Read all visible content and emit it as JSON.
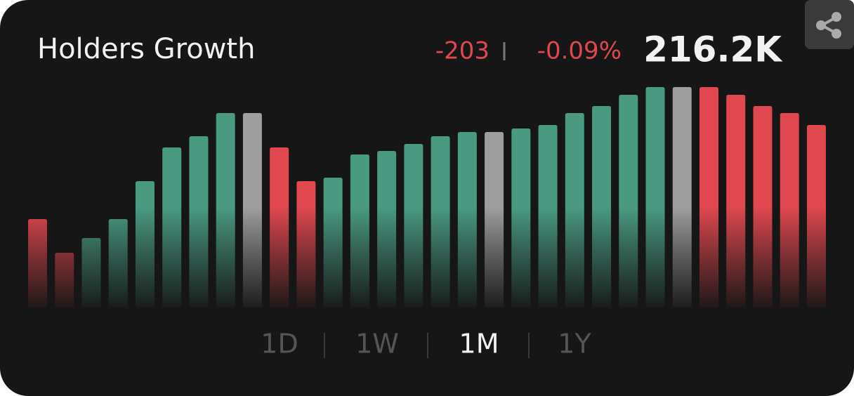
{
  "chart_data": {
    "type": "bar",
    "title": "Holders Growth",
    "values": [
      126,
      78,
      99,
      126,
      180,
      228,
      244,
      277,
      277,
      228,
      180,
      185,
      218,
      223,
      233,
      244,
      250,
      250,
      255,
      260,
      277,
      287,
      303,
      314,
      314,
      314,
      303,
      287,
      277,
      260
    ],
    "colors": [
      "#e0474f",
      "#e0474f",
      "#4a9a82",
      "#4a9a82",
      "#4a9a82",
      "#4a9a82",
      "#4a9a82",
      "#4a9a82",
      "#9e9e9e",
      "#e0474f",
      "#e0474f",
      "#4a9a82",
      "#4a9a82",
      "#4a9a82",
      "#4a9a82",
      "#4a9a82",
      "#4a9a82",
      "#9e9e9e",
      "#4a9a82",
      "#4a9a82",
      "#4a9a82",
      "#4a9a82",
      "#4a9a82",
      "#4a9a82",
      "#9e9e9e",
      "#e0474f",
      "#e0474f",
      "#e0474f",
      "#e0474f",
      "#e0474f"
    ],
    "ylim": [
      0,
      314
    ]
  },
  "header": {
    "change": "-203",
    "change_percent": "-0.09%",
    "total": "216.2K"
  },
  "tabs": {
    "items": [
      "1D",
      "1W",
      "1M",
      "1Y"
    ],
    "active": 2
  }
}
